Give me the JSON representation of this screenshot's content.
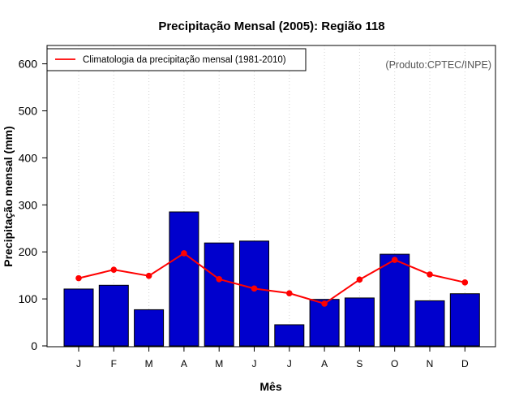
{
  "chart_data": {
    "type": "bar",
    "title": "Precipitação Mensal (2005): Região 118",
    "xlabel": "Mês",
    "ylabel": "Precipitação mensal (mm)",
    "ylim": [
      0,
      630
    ],
    "yticks": [
      0,
      100,
      200,
      300,
      400,
      500,
      600
    ],
    "categories": [
      "J",
      "F",
      "M",
      "A",
      "M",
      "J",
      "J",
      "A",
      "S",
      "O",
      "N",
      "D"
    ],
    "series": [
      {
        "name": "Precipitação mensal (2005)",
        "type": "bar",
        "color": "#0000cd",
        "values": [
          121,
          129,
          77,
          285,
          219,
          223,
          45,
          99,
          102,
          195,
          96,
          111
        ]
      },
      {
        "name": "Climatologia da precipitação mensal (1981-2010)",
        "type": "line",
        "color": "#ff0000",
        "values": [
          144,
          162,
          149,
          197,
          142,
          122,
          112,
          90,
          141,
          183,
          152,
          135
        ]
      }
    ],
    "legend": {
      "position": "top-left",
      "entries": [
        "Climatologia da precipitação mensal (1981-2010)"
      ]
    },
    "annotation": "(Produto:CPTEC/INPE)",
    "grid": "vertical dotted"
  }
}
